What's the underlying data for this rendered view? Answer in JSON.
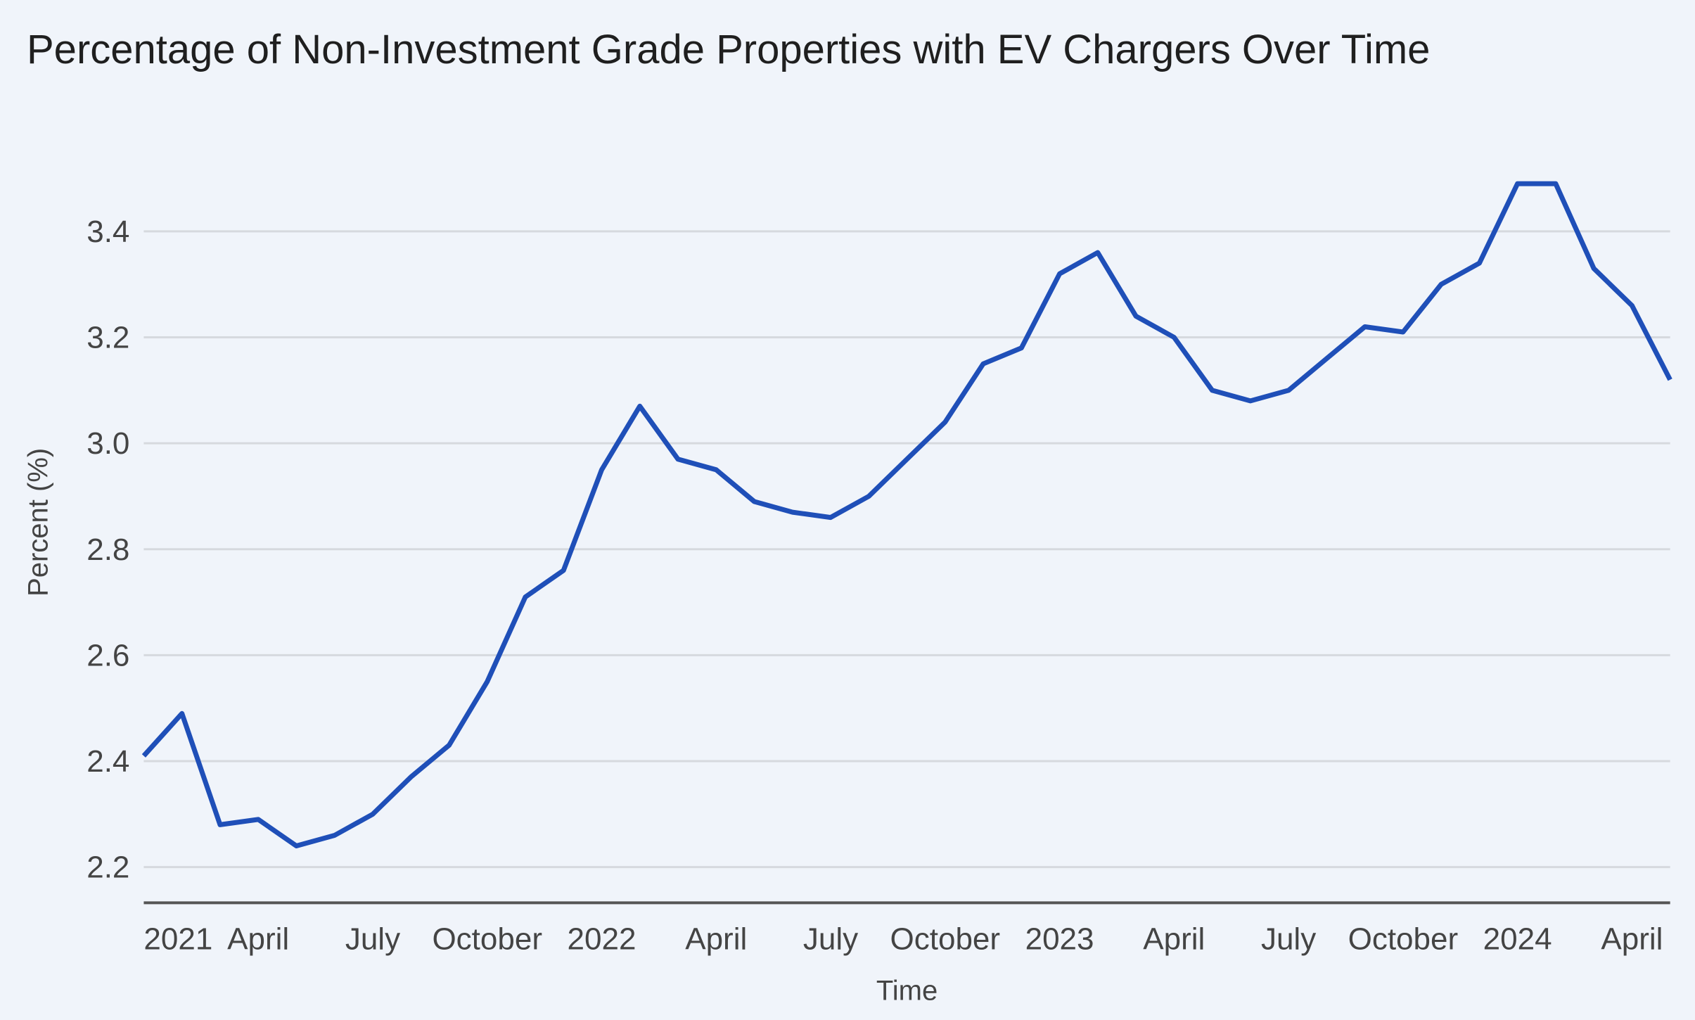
{
  "chart_data": {
    "type": "line",
    "title": "Percentage of Non-Investment Grade Properties with EV Chargers Over Time",
    "xlabel": "Time",
    "ylabel": "Percent (%)",
    "ylim": [
      2.13,
      3.63
    ],
    "yticks": [
      2.2,
      2.4,
      2.6,
      2.8,
      3.0,
      3.2,
      3.4
    ],
    "ytick_labels": [
      "2.2",
      "2.4",
      "2.6",
      "2.8",
      "3.0",
      "3.2",
      "3.4"
    ],
    "grid": true,
    "line_color": "#1f4fb8",
    "x": [
      "2021-01",
      "2021-02",
      "2021-03",
      "2021-04",
      "2021-05",
      "2021-06",
      "2021-07",
      "2021-08",
      "2021-09",
      "2021-10",
      "2021-11",
      "2021-12",
      "2022-01",
      "2022-02",
      "2022-03",
      "2022-04",
      "2022-05",
      "2022-06",
      "2022-07",
      "2022-08",
      "2022-09",
      "2022-10",
      "2022-11",
      "2022-12",
      "2023-01",
      "2023-02",
      "2023-03",
      "2023-04",
      "2023-05",
      "2023-06",
      "2023-07",
      "2023-08",
      "2023-09",
      "2023-10",
      "2023-11",
      "2023-12",
      "2024-01",
      "2024-02",
      "2024-03",
      "2024-04",
      "2024-05"
    ],
    "xticks": [
      {
        "index": 0,
        "label": "2021"
      },
      {
        "index": 3,
        "label": "April"
      },
      {
        "index": 6,
        "label": "July"
      },
      {
        "index": 9,
        "label": "October"
      },
      {
        "index": 12,
        "label": "2022"
      },
      {
        "index": 15,
        "label": "April"
      },
      {
        "index": 18,
        "label": "July"
      },
      {
        "index": 21,
        "label": "October"
      },
      {
        "index": 24,
        "label": "2023"
      },
      {
        "index": 27,
        "label": "April"
      },
      {
        "index": 30,
        "label": "July"
      },
      {
        "index": 33,
        "label": "October"
      },
      {
        "index": 36,
        "label": "2024"
      },
      {
        "index": 39,
        "label": "April"
      }
    ],
    "series": [
      {
        "name": "Percent",
        "values": [
          2.41,
          2.49,
          2.28,
          2.29,
          2.24,
          2.26,
          2.3,
          2.37,
          2.43,
          2.55,
          2.71,
          2.76,
          2.95,
          3.07,
          2.97,
          2.95,
          2.89,
          2.87,
          2.86,
          2.9,
          2.97,
          3.04,
          3.15,
          3.18,
          3.32,
          3.36,
          3.24,
          3.2,
          3.1,
          3.08,
          3.1,
          3.16,
          3.22,
          3.21,
          3.3,
          3.34,
          3.49,
          3.49,
          3.33,
          3.26,
          3.12
        ]
      }
    ]
  }
}
